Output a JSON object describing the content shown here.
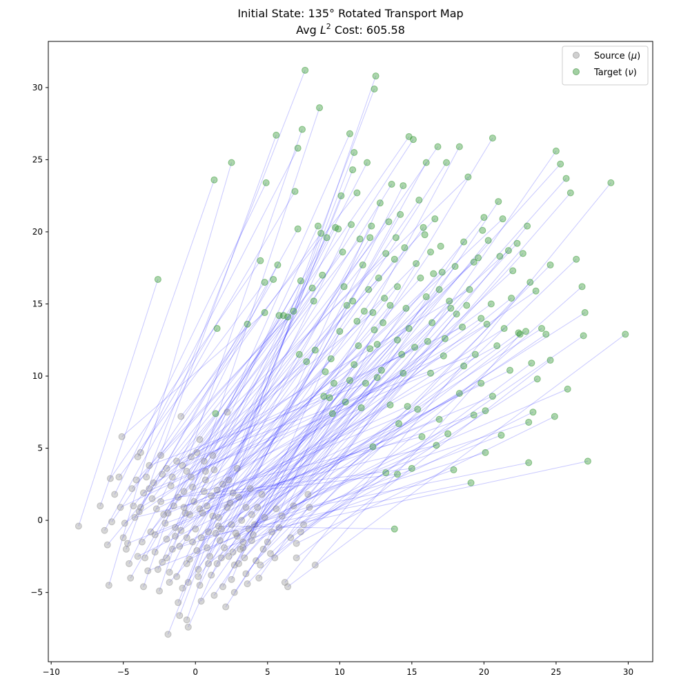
{
  "chart_data": {
    "type": "scatter",
    "title": "Initial State: 135° Rotated Transport Map",
    "subtitle_prefix": "Avg ",
    "subtitle_var": "L",
    "subtitle_sup": "2",
    "subtitle_suffix": " Cost: 605.58",
    "xlabel": "",
    "ylabel": "",
    "xlim": [
      -10.2,
      31.7
    ],
    "ylim": [
      -9.8,
      33.2
    ],
    "xticks": [
      -10,
      -5,
      0,
      5,
      10,
      15,
      20,
      25,
      30
    ],
    "yticks": [
      -5,
      0,
      5,
      10,
      15,
      20,
      25,
      30
    ],
    "ytick_labels": [
      "−5",
      "0",
      "5",
      "10",
      "15",
      "20",
      "25",
      "30"
    ],
    "xtick_labels": [
      "−10",
      "−5",
      "0",
      "5",
      "10",
      "15",
      "20",
      "25",
      "30"
    ],
    "legend": {
      "position": "top-right",
      "entries": [
        {
          "label_prefix": "Source (",
          "label_var": "μ",
          "label_suffix": ")",
          "color": "#a9a9a9"
        },
        {
          "label_prefix": "Target (",
          "label_var": "ν",
          "label_suffix": ")",
          "color": "#55aa55"
        }
      ]
    },
    "colors": {
      "source": "#8a8a8a",
      "target": "#3a9a3a",
      "line": "#0000ff"
    },
    "source_points": [
      [
        -8.1,
        -0.4
      ],
      [
        -6.6,
        1.0
      ],
      [
        -6.3,
        -0.7
      ],
      [
        -6.1,
        -1.7
      ],
      [
        -6.0,
        -4.5
      ],
      [
        -5.8,
        -0.1
      ],
      [
        -5.9,
        2.9
      ],
      [
        -5.3,
        3.0
      ],
      [
        -5.1,
        5.8
      ],
      [
        -5.6,
        1.8
      ],
      [
        -5.0,
        -1.2
      ],
      [
        -4.8,
        -2.0
      ],
      [
        -4.6,
        -3.0
      ],
      [
        -4.5,
        -4.0
      ],
      [
        -4.3,
        1.0
      ],
      [
        -4.4,
        2.2
      ],
      [
        -4.1,
        2.8
      ],
      [
        -4.0,
        4.4
      ],
      [
        -3.8,
        4.7
      ],
      [
        -3.9,
        0.6
      ],
      [
        -3.7,
        -1.5
      ],
      [
        -3.5,
        -2.6
      ],
      [
        -3.6,
        -4.6
      ],
      [
        -3.4,
        3.0
      ],
      [
        -3.2,
        2.2
      ],
      [
        -3.0,
        1.5
      ],
      [
        -3.1,
        -0.8
      ],
      [
        -2.8,
        -2.2
      ],
      [
        -2.6,
        -3.4
      ],
      [
        -2.5,
        -4.9
      ],
      [
        -2.4,
        4.5
      ],
      [
        -2.3,
        3.2
      ],
      [
        -2.2,
        0.4
      ],
      [
        -2.0,
        -1.3
      ],
      [
        -2.0,
        -2.6
      ],
      [
        -1.8,
        -3.6
      ],
      [
        -1.9,
        -7.9
      ],
      [
        -1.7,
        2.4
      ],
      [
        -1.5,
        1.0
      ],
      [
        -1.4,
        -0.5
      ],
      [
        -1.3,
        -3.9
      ],
      [
        -1.2,
        -5.7
      ],
      [
        -1.1,
        -6.6
      ],
      [
        -1.0,
        7.2
      ],
      [
        -0.9,
        3.8
      ],
      [
        -0.8,
        2.0
      ],
      [
        -0.7,
        0.5
      ],
      [
        -0.6,
        -1.2
      ],
      [
        -0.6,
        -3.0
      ],
      [
        -0.5,
        -4.3
      ],
      [
        -0.6,
        -6.9
      ],
      [
        -0.5,
        -7.4
      ],
      [
        -0.3,
        4.4
      ],
      [
        -0.3,
        3.0
      ],
      [
        -0.1,
        1.3
      ],
      [
        0.0,
        -0.6
      ],
      [
        0.1,
        -2.1
      ],
      [
        0.2,
        -3.4
      ],
      [
        0.3,
        -4.5
      ],
      [
        0.4,
        -5.6
      ],
      [
        0.3,
        5.6
      ],
      [
        0.6,
        4.1
      ],
      [
        0.7,
        2.8
      ],
      [
        0.8,
        1.0
      ],
      [
        0.9,
        -0.8
      ],
      [
        1.0,
        -2.5
      ],
      [
        1.1,
        -3.8
      ],
      [
        1.2,
        4.5
      ],
      [
        1.3,
        3.5
      ],
      [
        1.5,
        2.1
      ],
      [
        1.6,
        0.2
      ],
      [
        1.7,
        -1.4
      ],
      [
        1.8,
        -2.6
      ],
      [
        1.9,
        -4.6
      ],
      [
        2.1,
        -6.0
      ],
      [
        2.2,
        7.5
      ],
      [
        2.3,
        2.8
      ],
      [
        2.4,
        1.2
      ],
      [
        2.5,
        -0.3
      ],
      [
        2.6,
        -2.2
      ],
      [
        2.7,
        -3.1
      ],
      [
        2.7,
        -5.0
      ],
      [
        2.9,
        3.6
      ],
      [
        3.0,
        1.6
      ],
      [
        3.2,
        0.0
      ],
      [
        3.3,
        -1.5
      ],
      [
        3.4,
        -2.6
      ],
      [
        3.5,
        -3.7
      ],
      [
        3.6,
        -4.4
      ],
      [
        3.8,
        2.2
      ],
      [
        3.9,
        0.4
      ],
      [
        4.0,
        -1.0
      ],
      [
        4.2,
        -2.8
      ],
      [
        4.4,
        -4.0
      ],
      [
        4.6,
        1.8
      ],
      [
        4.8,
        0.2
      ],
      [
        5.0,
        -1.5
      ],
      [
        5.2,
        -2.3
      ],
      [
        5.5,
        -2.6
      ],
      [
        5.6,
        0.8
      ],
      [
        5.8,
        -0.5
      ],
      [
        6.2,
        -4.3
      ],
      [
        6.4,
        -4.6
      ],
      [
        6.6,
        -1.2
      ],
      [
        6.8,
        1.0
      ],
      [
        7.0,
        -1.6
      ],
      [
        7.0,
        -2.6
      ],
      [
        7.3,
        -0.8
      ],
      [
        7.5,
        -0.3
      ],
      [
        7.8,
        1.8
      ],
      [
        7.9,
        0.9
      ],
      [
        8.3,
        -3.1
      ],
      [
        -4.0,
        -2.5
      ],
      [
        -3.3,
        -3.5
      ],
      [
        -2.8,
        -1.0
      ],
      [
        -2.1,
        -0.2
      ],
      [
        -1.6,
        -2.0
      ],
      [
        -1.1,
        -1.8
      ],
      [
        -0.4,
        -2.7
      ],
      [
        0.4,
        -1.2
      ],
      [
        0.9,
        -3.0
      ],
      [
        1.4,
        -0.9
      ],
      [
        2.0,
        -1.9
      ],
      [
        2.8,
        -0.9
      ],
      [
        -5.2,
        0.9
      ],
      [
        -4.7,
        -1.6
      ],
      [
        -4.2,
        0.2
      ],
      [
        -3.6,
        1.9
      ],
      [
        -2.9,
        2.6
      ],
      [
        -2.4,
        1.3
      ],
      [
        -1.9,
        0.5
      ],
      [
        -1.2,
        1.6
      ],
      [
        -0.8,
        0.9
      ],
      [
        -0.2,
        2.3
      ],
      [
        0.5,
        0.5
      ],
      [
        1.1,
        1.7
      ],
      [
        1.6,
        -0.4
      ],
      [
        2.2,
        0.9
      ],
      [
        3.1,
        -2.0
      ],
      [
        3.7,
        -0.6
      ],
      [
        4.3,
        0.9
      ],
      [
        5.3,
        -0.8
      ],
      [
        6.0,
        0.3
      ],
      [
        -3.2,
        3.8
      ],
      [
        -2.7,
        0.8
      ],
      [
        -1.4,
        -1.1
      ],
      [
        -0.9,
        -4.7
      ],
      [
        0.2,
        -3.9
      ],
      [
        1.3,
        -5.2
      ],
      [
        2.5,
        -4.1
      ],
      [
        3.3,
        -1.9
      ],
      [
        4.7,
        -2.0
      ],
      [
        -0.6,
        3.4
      ],
      [
        -1.6,
        3.0
      ],
      [
        0.7,
        3.4
      ],
      [
        1.9,
        2.5
      ],
      [
        2.6,
        1.9
      ],
      [
        3.5,
        0.9
      ],
      [
        4.1,
        -0.3
      ],
      [
        -4.9,
        -0.2
      ],
      [
        -3.8,
        0.9
      ],
      [
        -2.3,
        -2.9
      ],
      [
        -1.8,
        -4.3
      ],
      [
        -0.2,
        -1.5
      ],
      [
        0.8,
        -1.9
      ],
      [
        1.5,
        -3.0
      ],
      [
        2.3,
        -2.5
      ],
      [
        3.0,
        -3.0
      ],
      [
        -1.3,
        4.1
      ],
      [
        0.1,
        4.7
      ],
      [
        -2.0,
        3.6
      ],
      [
        -0.4,
        0.4
      ],
      [
        0.6,
        2.0
      ],
      [
        -1.0,
        -0.7
      ],
      [
        0.3,
        0.8
      ],
      [
        1.2,
        0.3
      ],
      [
        1.8,
        -0.6
      ],
      [
        2.9,
        -1.1
      ],
      [
        3.9,
        -1.4
      ],
      [
        4.5,
        -3.1
      ]
    ],
    "target_points": [
      [
        -2.6,
        16.7
      ],
      [
        1.3,
        23.6
      ],
      [
        1.5,
        13.3
      ],
      [
        1.4,
        7.4
      ],
      [
        2.5,
        24.8
      ],
      [
        3.6,
        13.6
      ],
      [
        4.5,
        18.0
      ],
      [
        4.8,
        16.5
      ],
      [
        4.8,
        14.4
      ],
      [
        4.9,
        23.4
      ],
      [
        5.4,
        16.7
      ],
      [
        5.6,
        26.7
      ],
      [
        5.7,
        17.7
      ],
      [
        5.8,
        14.2
      ],
      [
        6.1,
        14.2
      ],
      [
        6.4,
        14.1
      ],
      [
        6.8,
        14.5
      ],
      [
        6.9,
        22.8
      ],
      [
        7.1,
        25.8
      ],
      [
        7.1,
        20.2
      ],
      [
        7.2,
        11.5
      ],
      [
        7.3,
        16.6
      ],
      [
        7.4,
        27.1
      ],
      [
        7.6,
        31.2
      ],
      [
        7.7,
        11.0
      ],
      [
        8.1,
        16.1
      ],
      [
        8.2,
        15.2
      ],
      [
        8.3,
        11.8
      ],
      [
        8.5,
        20.4
      ],
      [
        8.6,
        28.6
      ],
      [
        8.7,
        19.9
      ],
      [
        8.8,
        17.0
      ],
      [
        9.1,
        19.6
      ],
      [
        9.4,
        11.2
      ],
      [
        9.7,
        20.3
      ],
      [
        9.9,
        20.2
      ],
      [
        10.1,
        22.5
      ],
      [
        10.2,
        18.6
      ],
      [
        10.5,
        14.9
      ],
      [
        10.7,
        26.8
      ],
      [
        10.8,
        20.5
      ],
      [
        10.9,
        24.3
      ],
      [
        11.0,
        25.5
      ],
      [
        11.2,
        22.7
      ],
      [
        11.4,
        19.5
      ],
      [
        11.6,
        17.7
      ],
      [
        11.9,
        24.8
      ],
      [
        12.1,
        19.6
      ],
      [
        12.2,
        20.4
      ],
      [
        12.4,
        29.9
      ],
      [
        12.5,
        30.8
      ],
      [
        12.8,
        22.0
      ],
      [
        13.2,
        18.5
      ],
      [
        13.4,
        20.7
      ],
      [
        13.6,
        23.3
      ],
      [
        13.8,
        18.1
      ],
      [
        14.0,
        16.2
      ],
      [
        14.2,
        21.2
      ],
      [
        14.4,
        23.2
      ],
      [
        14.6,
        14.7
      ],
      [
        14.8,
        26.6
      ],
      [
        15.1,
        26.4
      ],
      [
        15.3,
        17.8
      ],
      [
        15.5,
        22.2
      ],
      [
        15.8,
        20.3
      ],
      [
        16.0,
        24.8
      ],
      [
        16.3,
        18.6
      ],
      [
        16.6,
        20.9
      ],
      [
        16.8,
        25.9
      ],
      [
        17.1,
        17.2
      ],
      [
        17.4,
        24.8
      ],
      [
        17.7,
        14.7
      ],
      [
        18.0,
        17.6
      ],
      [
        18.3,
        25.9
      ],
      [
        18.6,
        19.3
      ],
      [
        18.9,
        23.8
      ],
      [
        19.3,
        17.9
      ],
      [
        19.6,
        18.2
      ],
      [
        20.0,
        21.0
      ],
      [
        20.3,
        19.4
      ],
      [
        20.6,
        26.5
      ],
      [
        21.0,
        22.1
      ],
      [
        21.3,
        20.9
      ],
      [
        21.7,
        18.7
      ],
      [
        22.0,
        17.3
      ],
      [
        22.3,
        19.2
      ],
      [
        22.7,
        18.5
      ],
      [
        23.0,
        20.4
      ],
      [
        23.2,
        16.5
      ],
      [
        23.6,
        15.9
      ],
      [
        24.0,
        13.3
      ],
      [
        24.3,
        12.9
      ],
      [
        24.6,
        17.7
      ],
      [
        25.0,
        25.6
      ],
      [
        25.3,
        24.7
      ],
      [
        25.7,
        23.7
      ],
      [
        26.0,
        22.7
      ],
      [
        26.4,
        18.1
      ],
      [
        26.8,
        16.2
      ],
      [
        27.0,
        14.4
      ],
      [
        27.2,
        4.1
      ],
      [
        28.8,
        23.4
      ],
      [
        29.8,
        12.9
      ],
      [
        26.9,
        12.8
      ],
      [
        25.8,
        9.1
      ],
      [
        24.9,
        7.2
      ],
      [
        24.6,
        11.1
      ],
      [
        23.7,
        9.8
      ],
      [
        23.4,
        7.5
      ],
      [
        23.1,
        6.8
      ],
      [
        23.1,
        4.0
      ],
      [
        22.5,
        12.9
      ],
      [
        21.8,
        10.4
      ],
      [
        21.2,
        5.9
      ],
      [
        20.6,
        8.6
      ],
      [
        20.1,
        7.6
      ],
      [
        20.1,
        4.7
      ],
      [
        19.8,
        9.5
      ],
      [
        19.3,
        7.3
      ],
      [
        19.1,
        2.6
      ],
      [
        18.6,
        10.7
      ],
      [
        18.3,
        8.8
      ],
      [
        17.9,
        3.5
      ],
      [
        17.5,
        6.0
      ],
      [
        17.2,
        11.4
      ],
      [
        16.9,
        7.0
      ],
      [
        16.7,
        5.2
      ],
      [
        16.3,
        10.2
      ],
      [
        16.1,
        12.4
      ],
      [
        15.7,
        5.8
      ],
      [
        15.4,
        7.7
      ],
      [
        15.0,
        3.6
      ],
      [
        14.7,
        7.9
      ],
      [
        14.4,
        10.2
      ],
      [
        14.1,
        6.7
      ],
      [
        14.0,
        3.2
      ],
      [
        13.8,
        -0.6
      ],
      [
        13.5,
        8.0
      ],
      [
        13.2,
        3.3
      ],
      [
        12.9,
        10.4
      ],
      [
        12.6,
        9.9
      ],
      [
        12.3,
        5.1
      ],
      [
        12.1,
        11.9
      ],
      [
        11.8,
        9.5
      ],
      [
        11.5,
        7.8
      ],
      [
        11.3,
        12.1
      ],
      [
        11.0,
        10.8
      ],
      [
        10.7,
        9.7
      ],
      [
        10.4,
        8.2
      ],
      [
        10.0,
        13.1
      ],
      [
        9.6,
        9.5
      ],
      [
        9.3,
        8.5
      ],
      [
        9.0,
        10.3
      ],
      [
        12.3,
        14.4
      ],
      [
        12.7,
        16.8
      ],
      [
        13.1,
        15.4
      ],
      [
        13.5,
        14.9
      ],
      [
        14.0,
        12.5
      ],
      [
        14.3,
        11.5
      ],
      [
        14.8,
        13.3
      ],
      [
        15.2,
        12.0
      ],
      [
        15.6,
        16.8
      ],
      [
        16.0,
        15.5
      ],
      [
        16.4,
        13.7
      ],
      [
        16.9,
        16.0
      ],
      [
        17.3,
        12.6
      ],
      [
        17.6,
        15.2
      ],
      [
        18.1,
        14.3
      ],
      [
        18.5,
        13.4
      ],
      [
        19.0,
        16.0
      ],
      [
        19.4,
        11.5
      ],
      [
        19.8,
        14.0
      ],
      [
        20.2,
        13.6
      ],
      [
        20.5,
        15.0
      ],
      [
        20.9,
        12.1
      ],
      [
        21.4,
        13.3
      ],
      [
        21.9,
        15.4
      ],
      [
        22.4,
        13.0
      ],
      [
        22.9,
        13.1
      ],
      [
        23.3,
        10.9
      ],
      [
        10.3,
        16.2
      ],
      [
        10.9,
        15.2
      ],
      [
        11.2,
        13.8
      ],
      [
        11.7,
        14.5
      ],
      [
        12.0,
        16.0
      ],
      [
        12.4,
        13.2
      ],
      [
        8.9,
        8.6
      ],
      [
        9.5,
        7.4
      ],
      [
        18.8,
        14.9
      ],
      [
        17.0,
        19.0
      ],
      [
        15.9,
        19.8
      ],
      [
        16.5,
        17.1
      ],
      [
        19.9,
        20.1
      ],
      [
        21.1,
        18.3
      ],
      [
        14.5,
        18.9
      ],
      [
        13.9,
        19.6
      ],
      [
        12.6,
        12.2
      ],
      [
        13.0,
        13.7
      ]
    ]
  }
}
